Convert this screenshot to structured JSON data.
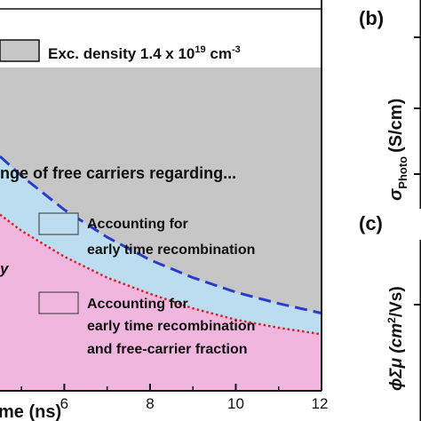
{
  "chart_data": {
    "type": "area",
    "x_axis": {
      "ticks": [
        6,
        8,
        10,
        12
      ],
      "label_fragment": "me (ns)"
    },
    "legend_top": {
      "label": "Exc. density 1.4 x 10",
      "sup": "19",
      "unit": " cm",
      "unit_sup": "-3",
      "color": "#c6c6c6"
    },
    "annotations": {
      "main_text": "nge of free carriers regarding...",
      "left_fragment": "y"
    },
    "regions": [
      {
        "name_line1": "Accounting for",
        "name_line2": "early time recombination",
        "color": "#bcdcef"
      },
      {
        "name_line1": "Accounting for",
        "name_line2": "early time recombination",
        "name_line3": "and free-carrier fraction",
        "color": "#f0b6dd"
      }
    ],
    "series": [
      {
        "style": "dashed",
        "color": "#2b3cc9",
        "x": [
          4.5,
          5,
          6,
          7,
          8,
          9,
          10,
          11,
          12
        ],
        "y": [
          0.725,
          0.665,
          0.56,
          0.475,
          0.405,
          0.35,
          0.305,
          0.27,
          0.24
        ]
      },
      {
        "style": "dotted",
        "color": "#e0202c",
        "x": [
          4.5,
          5,
          6,
          7,
          8,
          9,
          10,
          11,
          12
        ],
        "y": [
          0.545,
          0.495,
          0.415,
          0.35,
          0.3,
          0.255,
          0.22,
          0.195,
          0.175
        ]
      }
    ],
    "xlim": [
      4.5,
      12
    ],
    "ylim": [
      0,
      1
    ],
    "grey_area_color": "#c6c6c6",
    "panel_labels": [
      "(b)",
      "(c)"
    ],
    "right_axis_labels": [
      "σ",
      "Photo",
      "(S/cm)",
      "ϕΣμ (cm",
      "2",
      "/Vs)"
    ]
  }
}
